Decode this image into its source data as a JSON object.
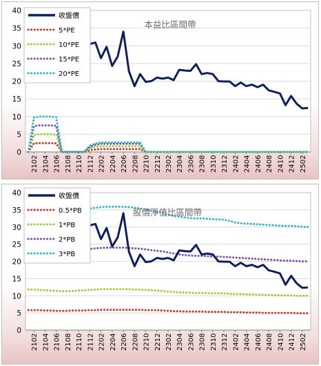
{
  "chart_data": [
    {
      "type": "line",
      "title": "本益比區間帶",
      "x": [
        "2101",
        "2102",
        "2103",
        "2104",
        "2105",
        "2106",
        "2107",
        "2108",
        "2109",
        "2110",
        "2111",
        "2112",
        "2201",
        "2202",
        "2203",
        "2204",
        "2205",
        "2206",
        "2207",
        "2208",
        "2209",
        "2210",
        "2211",
        "2212",
        "2301",
        "2302",
        "2303",
        "2304",
        "2305",
        "2306",
        "2307",
        "2308",
        "2309",
        "2310",
        "2311",
        "2312",
        "2401",
        "2402",
        "2403",
        "2404",
        "2405",
        "2406",
        "2407",
        "2408",
        "2409",
        "2410",
        "2411",
        "2412",
        "2501",
        "2502",
        "2503"
      ],
      "xticks": [
        "2102",
        "2104",
        "2106",
        "2108",
        "2110",
        "2112",
        "2202",
        "2204",
        "2206",
        "2208",
        "2210",
        "2212",
        "2302",
        "2304",
        "2306",
        "2308",
        "2310",
        "2312",
        "2402",
        "2404",
        "2406",
        "2408",
        "2410",
        "2412",
        "2502"
      ],
      "ylim": [
        0,
        40
      ],
      "yticks": [
        0,
        5,
        10,
        15,
        20,
        25,
        30,
        35,
        40
      ],
      "legend_position": "top-left",
      "series": [
        {
          "name": "收盤價",
          "color": "#0d1f5c",
          "style": "solid",
          "values": [
            33.5,
            33.2,
            32.8,
            32.5,
            32.0,
            31.8,
            31.0,
            30.8,
            30.9,
            31.2,
            31.6,
            30.5,
            30.9,
            26.5,
            29.7,
            24.3,
            27.0,
            34.0,
            22.8,
            18.6,
            22.0,
            19.8,
            20.0,
            21.0,
            20.7,
            21.0,
            20.3,
            23.2,
            23.0,
            22.9,
            24.8,
            22.0,
            22.3,
            22.0,
            20.0,
            19.9,
            19.9,
            18.6,
            19.6,
            18.6,
            19.0,
            18.3,
            19.0,
            17.4,
            17.0,
            16.5,
            13.2,
            15.8,
            13.6,
            12.3,
            12.4
          ]
        },
        {
          "name": "5*PE",
          "color": "#c0392b",
          "style": "dotted",
          "values": [
            0,
            2.4,
            2.5,
            2.5,
            2.5,
            2.4,
            0,
            0,
            0,
            0,
            0,
            0.5,
            0.7,
            0.8,
            0.8,
            0.8,
            0.8,
            0.8,
            0.8,
            0.8,
            0.8,
            0,
            0,
            0,
            0,
            0,
            0,
            0,
            0,
            0,
            0,
            0,
            0,
            0,
            0,
            0,
            0,
            0,
            0,
            0,
            0,
            0,
            0,
            0,
            0,
            0,
            0,
            0,
            0,
            0,
            0
          ]
        },
        {
          "name": "10*PE",
          "color": "#9acd32",
          "style": "dotted",
          "values": [
            0,
            4.8,
            5.0,
            5.0,
            5.0,
            4.9,
            0,
            0,
            0,
            0,
            0,
            1.0,
            1.4,
            1.6,
            1.6,
            1.6,
            1.6,
            1.6,
            1.6,
            1.6,
            1.6,
            0,
            0,
            0,
            0,
            0,
            0,
            0,
            0,
            0,
            0,
            0,
            0,
            0,
            0,
            0,
            0,
            0,
            0,
            0,
            0,
            0,
            0,
            0,
            0,
            0,
            0,
            0,
            0,
            0,
            0
          ]
        },
        {
          "name": "15*PE",
          "color": "#7b4fa0",
          "style": "dotted",
          "values": [
            0,
            7.3,
            7.5,
            7.5,
            7.5,
            7.4,
            0,
            0,
            0,
            0,
            0,
            1.4,
            2.0,
            2.3,
            2.3,
            2.3,
            2.3,
            2.3,
            2.3,
            2.3,
            2.3,
            0,
            0,
            0,
            0,
            0,
            0,
            0,
            0,
            0,
            0,
            0,
            0,
            0,
            0,
            0,
            0,
            0,
            0,
            0,
            0,
            0,
            0,
            0,
            0,
            0,
            0,
            0,
            0,
            0,
            0
          ]
        },
        {
          "name": "20*PE",
          "color": "#2eb6c9",
          "style": "dotted",
          "values": [
            0,
            9.7,
            10.0,
            10.0,
            10.0,
            9.8,
            0,
            0,
            0,
            0,
            0,
            1.8,
            2.4,
            2.7,
            2.7,
            2.7,
            2.7,
            2.7,
            2.7,
            2.7,
            2.7,
            0,
            0,
            0,
            0,
            0,
            0,
            0,
            0,
            0,
            0,
            0,
            0,
            0,
            0,
            0,
            0,
            0,
            0,
            0,
            0,
            0,
            0,
            0,
            0,
            0,
            0,
            0,
            0,
            0,
            0
          ]
        }
      ]
    },
    {
      "type": "line",
      "title": "股價淨值比區間帶",
      "x": [
        "2101",
        "2102",
        "2103",
        "2104",
        "2105",
        "2106",
        "2107",
        "2108",
        "2109",
        "2110",
        "2111",
        "2112",
        "2201",
        "2202",
        "2203",
        "2204",
        "2205",
        "2206",
        "2207",
        "2208",
        "2209",
        "2210",
        "2211",
        "2212",
        "2301",
        "2302",
        "2303",
        "2304",
        "2305",
        "2306",
        "2307",
        "2308",
        "2309",
        "2310",
        "2311",
        "2312",
        "2401",
        "2402",
        "2403",
        "2404",
        "2405",
        "2406",
        "2407",
        "2408",
        "2409",
        "2410",
        "2411",
        "2412",
        "2501",
        "2502",
        "2503"
      ],
      "xticks": [
        "2102",
        "2104",
        "2106",
        "2108",
        "2110",
        "2112",
        "2202",
        "2204",
        "2206",
        "2208",
        "2210",
        "2212",
        "2302",
        "2304",
        "2306",
        "2308",
        "2310",
        "2312",
        "2402",
        "2404",
        "2406",
        "2408",
        "2410",
        "2412",
        "2502"
      ],
      "ylim": [
        0,
        40
      ],
      "yticks": [
        0,
        5,
        10,
        15,
        20,
        25,
        30,
        35,
        40
      ],
      "legend_position": "top-left",
      "series": [
        {
          "name": "收盤價",
          "color": "#0d1f5c",
          "style": "solid",
          "values": [
            27.0,
            26.5,
            26.0,
            25.0,
            24.0,
            22.0,
            29.0,
            30.0,
            30.2,
            30.4,
            30.6,
            30.5,
            30.9,
            26.5,
            29.7,
            24.3,
            27.0,
            34.0,
            22.8,
            18.6,
            22.0,
            19.8,
            20.0,
            21.0,
            20.7,
            21.0,
            20.3,
            23.2,
            23.0,
            22.9,
            24.8,
            22.0,
            22.3,
            22.0,
            20.0,
            19.9,
            19.9,
            18.6,
            19.6,
            18.6,
            19.0,
            18.3,
            19.0,
            17.4,
            17.0,
            16.5,
            13.2,
            15.8,
            13.6,
            12.3,
            12.4
          ]
        },
        {
          "name": "0.5*PB",
          "color": "#c0392b",
          "style": "dotted",
          "values": [
            5.8,
            5.8,
            5.8,
            5.7,
            5.7,
            5.6,
            5.6,
            5.6,
            5.7,
            5.7,
            5.7,
            5.8,
            5.8,
            5.9,
            5.9,
            5.9,
            5.9,
            5.9,
            5.9,
            5.9,
            5.9,
            5.8,
            5.8,
            5.8,
            5.7,
            5.6,
            5.5,
            5.5,
            5.4,
            5.4,
            5.4,
            5.4,
            5.3,
            5.3,
            5.3,
            5.3,
            5.2,
            5.2,
            5.2,
            5.1,
            5.1,
            5.1,
            5.0,
            5.0,
            5.0,
            5.0,
            5.0,
            5.0,
            4.9,
            4.9,
            4.9
          ]
        },
        {
          "name": "1*PB",
          "color": "#9acd32",
          "style": "dotted",
          "values": [
            11.8,
            11.8,
            11.7,
            11.6,
            11.5,
            11.4,
            11.3,
            11.3,
            11.4,
            11.5,
            11.6,
            11.7,
            11.8,
            11.9,
            11.9,
            11.9,
            11.9,
            11.9,
            11.9,
            11.8,
            11.8,
            11.7,
            11.6,
            11.5,
            11.4,
            11.2,
            11.1,
            11.0,
            10.9,
            10.9,
            10.8,
            10.8,
            10.8,
            10.7,
            10.7,
            10.7,
            10.6,
            10.5,
            10.5,
            10.4,
            10.4,
            10.3,
            10.3,
            10.2,
            10.2,
            10.1,
            10.1,
            10.1,
            10.0,
            10.0,
            10.0
          ]
        },
        {
          "name": "2*PB",
          "color": "#7b4fa0",
          "style": "dotted",
          "values": [
            23.6,
            23.5,
            23.3,
            23.0,
            22.8,
            22.7,
            22.7,
            22.8,
            23.0,
            23.2,
            23.4,
            23.6,
            23.8,
            23.9,
            24.0,
            24.0,
            24.0,
            24.0,
            23.9,
            23.8,
            23.7,
            23.5,
            23.3,
            23.1,
            22.9,
            22.6,
            22.3,
            22.0,
            21.8,
            21.7,
            21.6,
            21.6,
            21.5,
            21.4,
            21.4,
            21.3,
            21.2,
            21.1,
            21.0,
            20.9,
            20.8,
            20.7,
            20.6,
            20.5,
            20.4,
            20.3,
            20.2,
            20.2,
            20.1,
            20.0,
            20.0
          ]
        },
        {
          "name": "3*PB",
          "color": "#2eb6c9",
          "style": "dotted",
          "values": [
            35.4,
            35.3,
            35.0,
            34.6,
            34.2,
            34.0,
            34.0,
            34.2,
            34.5,
            34.8,
            35.1,
            35.4,
            35.6,
            35.8,
            35.9,
            35.9,
            35.9,
            35.9,
            35.8,
            35.6,
            35.4,
            35.1,
            34.8,
            34.5,
            34.2,
            33.6,
            33.2,
            33.0,
            32.8,
            32.6,
            32.5,
            32.5,
            32.4,
            32.3,
            32.2,
            32.1,
            31.8,
            31.3,
            31.1,
            31.0,
            30.9,
            30.8,
            30.7,
            30.6,
            30.5,
            30.4,
            30.3,
            30.3,
            30.2,
            30.1,
            30.0
          ]
        }
      ]
    }
  ]
}
